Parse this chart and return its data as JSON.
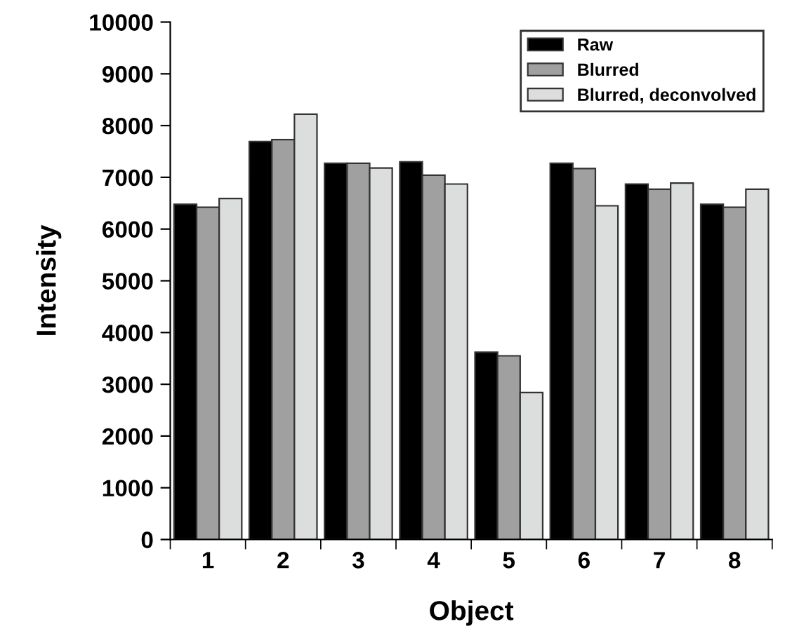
{
  "chart_data": {
    "type": "bar",
    "xlabel": "Object",
    "ylabel": "Intensity",
    "categories": [
      "1",
      "2",
      "3",
      "4",
      "5",
      "6",
      "7",
      "8"
    ],
    "series": [
      {
        "name": "Raw",
        "color": "#000000",
        "values": [
          6480,
          7690,
          7270,
          7300,
          3620,
          7270,
          6870,
          6480
        ]
      },
      {
        "name": "Blurred",
        "color": "#a0a0a0",
        "values": [
          6420,
          7730,
          7270,
          7040,
          3550,
          7170,
          6770,
          6420
        ]
      },
      {
        "name": "Blurred, deconvolved",
        "color": "#dcdddd",
        "values": [
          6590,
          8220,
          7180,
          6870,
          2840,
          6450,
          6890,
          6770
        ]
      }
    ],
    "ylim": [
      0,
      10000
    ],
    "yticks": [
      0,
      1000,
      2000,
      3000,
      4000,
      5000,
      6000,
      7000,
      8000,
      9000,
      10000
    ],
    "grid": false,
    "legend": "top right"
  }
}
